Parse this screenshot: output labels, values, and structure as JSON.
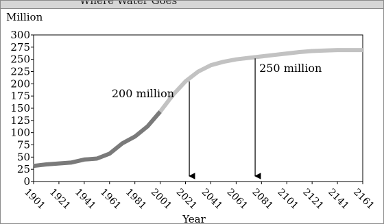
{
  "header": {
    "title": "Where Water Goes"
  },
  "chart_data": {
    "type": "line",
    "title": "Where Water Goes",
    "ylabel": "Million",
    "xlabel": "Year",
    "ylim": [
      0,
      300
    ],
    "xlim": [
      1901,
      2161
    ],
    "y_ticks": [
      0,
      25,
      50,
      75,
      100,
      125,
      150,
      175,
      200,
      225,
      250,
      275,
      300
    ],
    "x_ticks": [
      1901,
      1921,
      1941,
      1961,
      1981,
      2001,
      2021,
      2041,
      2061,
      2081,
      2101,
      2121,
      2141,
      2161
    ],
    "grid": false,
    "series": [
      {
        "style": "historical",
        "color": "#7a7a7a",
        "x": [
          1901,
          1911,
          1921,
          1931,
          1941,
          1951,
          1961,
          1971,
          1981,
          1991,
          2001
        ],
        "y": [
          32,
          35,
          37,
          39,
          45,
          47,
          57,
          78,
          92,
          113,
          143
        ]
      },
      {
        "style": "projected",
        "color": "#c2c2c2",
        "x": [
          2001,
          2011,
          2021,
          2031,
          2041,
          2051,
          2061,
          2071,
          2081,
          2091,
          2101,
          2111,
          2121,
          2131,
          2141,
          2151,
          2161
        ],
        "y": [
          143,
          177,
          205,
          225,
          238,
          245,
          250,
          253,
          256,
          259,
          262,
          265,
          267,
          268,
          269,
          269,
          269
        ]
      }
    ],
    "annotations": [
      {
        "text": "200 million",
        "x": 2024,
        "y": 205
      },
      {
        "text": "250 million",
        "x": 2076,
        "y": 252
      }
    ]
  }
}
